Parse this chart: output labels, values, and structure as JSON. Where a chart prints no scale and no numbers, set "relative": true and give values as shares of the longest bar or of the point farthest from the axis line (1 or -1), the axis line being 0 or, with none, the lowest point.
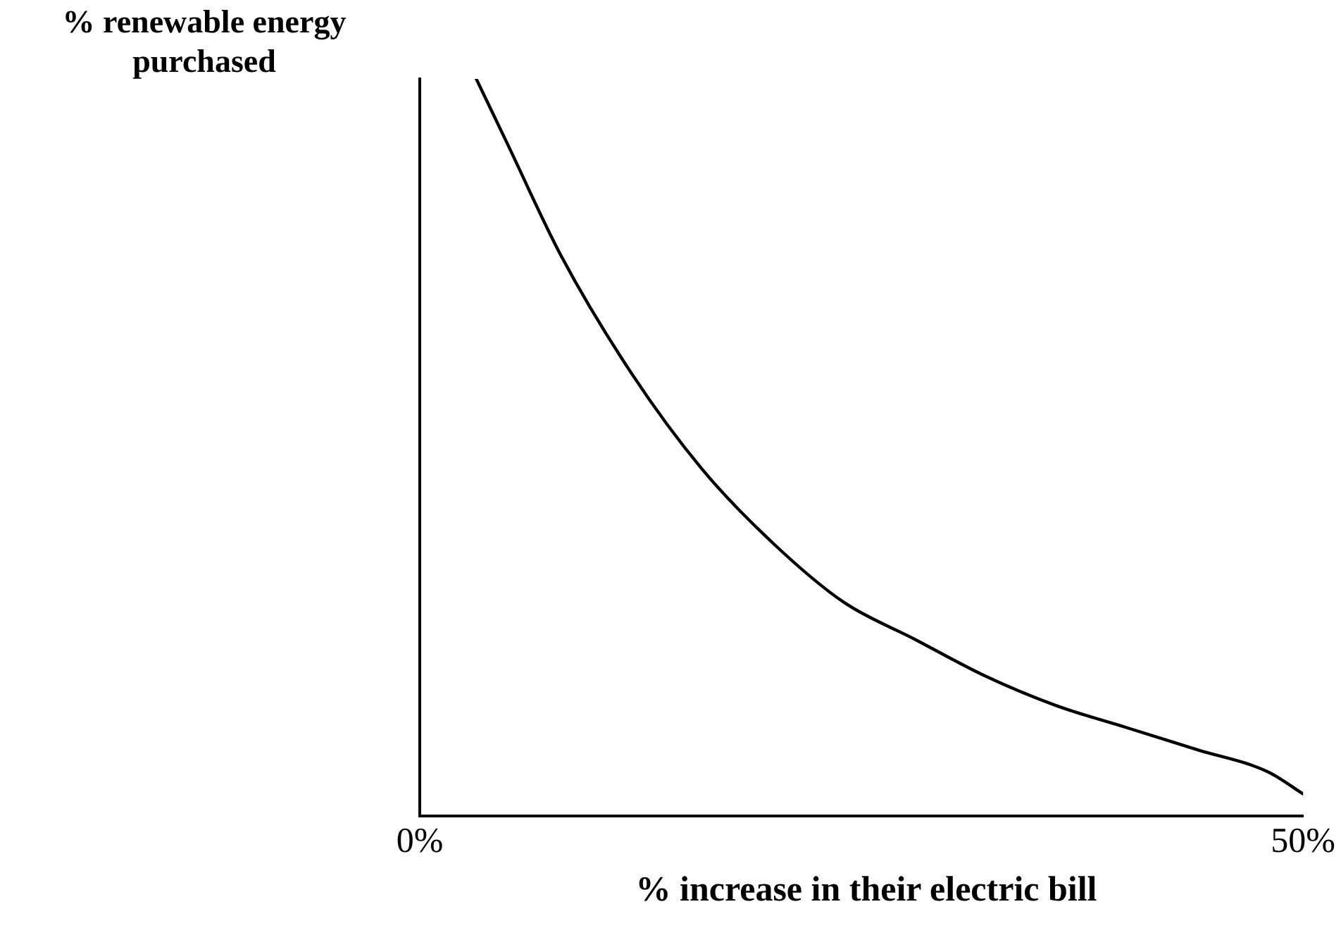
{
  "chart_data": {
    "type": "line",
    "xlabel": "% increase in their electric bill",
    "ylabel": "% renewable energy purchased",
    "relative": true,
    "x": [
      3.2,
      5,
      8,
      12,
      16,
      20,
      24,
      28,
      32,
      36,
      40,
      44,
      48,
      50
    ],
    "series": [
      {
        "color": "#000000",
        "values": [
          1,
          0.91,
          0.76,
          0.6,
          0.47,
          0.37,
          0.29,
          0.24,
          0.19,
          0.15,
          0.12,
          0.09,
          0.06,
          0.03
        ]
      }
    ],
    "xlim": [
      0,
      50
    ],
    "xticks": [
      {
        "value": 0,
        "label": "0%"
      },
      {
        "value": 50,
        "label": "50%"
      }
    ],
    "grid": false,
    "legend": false,
    "marker": "none",
    "line_style": "solid"
  }
}
